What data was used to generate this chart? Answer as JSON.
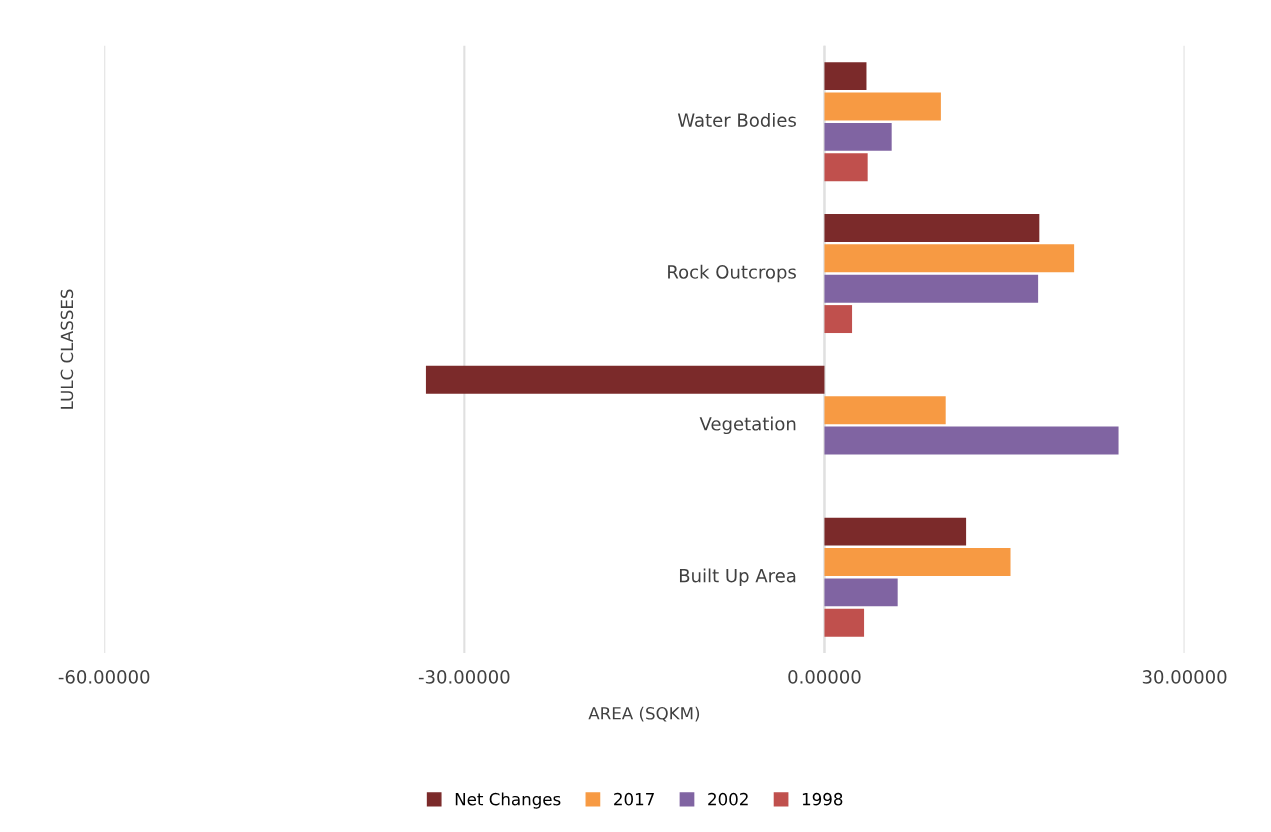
{
  "chart_data": {
    "type": "bar",
    "orientation": "horizontal",
    "categories": [
      "Water Bodies",
      "Rock Outcrops",
      "Vegetation",
      "Built Up Area"
    ],
    "series": [
      {
        "name": "Net Changes",
        "color": "#7b2a2a",
        "values": [
          3.5,
          17.9,
          -33.2,
          11.8
        ]
      },
      {
        "name": "2017",
        "color": "#f79a43",
        "values": [
          9.7,
          20.8,
          10.1,
          15.5
        ]
      },
      {
        "name": "2002",
        "color": "#8064a2",
        "values": [
          5.6,
          17.8,
          24.5,
          6.1
        ]
      },
      {
        "name": "1998",
        "color": "#c0504d",
        "values": [
          3.6,
          2.3,
          null,
          3.3
        ]
      }
    ],
    "xlim": [
      -60,
      30
    ],
    "xticks": [
      {
        "value": -60,
        "label": "-60.00000"
      },
      {
        "value": -30,
        "label": "-30.00000"
      },
      {
        "value": 0,
        "label": "0.00000"
      },
      {
        "value": 30,
        "label": "30.00000"
      }
    ],
    "xlabel": "AREA (SQKM)",
    "ylabel": "LULC CLASSES",
    "grid": "x",
    "legend": "bottom"
  }
}
